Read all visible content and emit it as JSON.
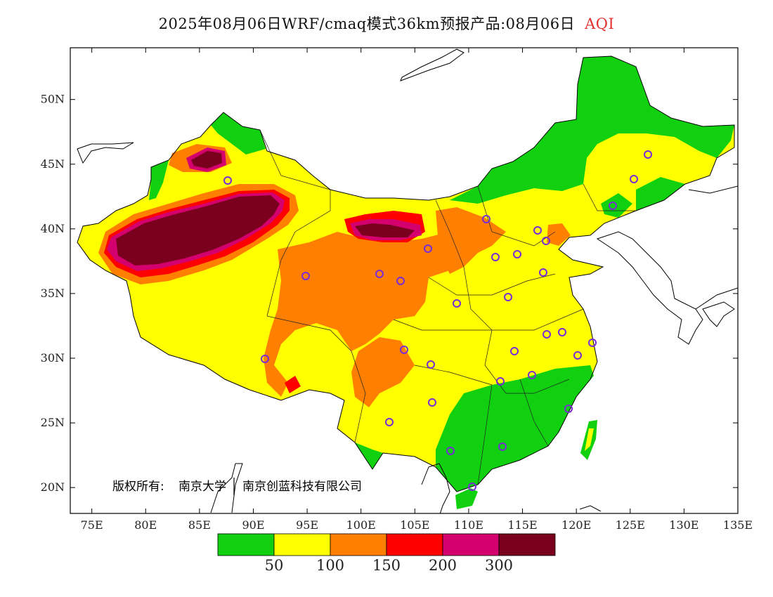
{
  "title": {
    "main": "2025年08月06日WRF/cmaq模式36km预报产品:08月06日",
    "variable": "AQI"
  },
  "copyright": {
    "label": "版权所有:",
    "org1": "南京大学",
    "org2": "南京创蓝科技有限公司"
  },
  "map": {
    "lon_range": [
      73,
      135
    ],
    "lat_range": [
      18,
      54
    ],
    "lon_ticks": [
      "75E",
      "80E",
      "85E",
      "90E",
      "95E",
      "100E",
      "105E",
      "110E",
      "115E",
      "120E",
      "125E",
      "130E",
      "135E"
    ],
    "lat_ticks": [
      "20N",
      "25N",
      "30N",
      "35N",
      "40N",
      "45N",
      "50N"
    ],
    "station_color": "#7a2cd6"
  },
  "legend": {
    "colors": [
      "#10d010",
      "#ffff00",
      "#ff7f00",
      "#ff0000",
      "#d4006e",
      "#7a001e"
    ],
    "labels": [
      "50",
      "100",
      "150",
      "200",
      "300"
    ]
  }
}
